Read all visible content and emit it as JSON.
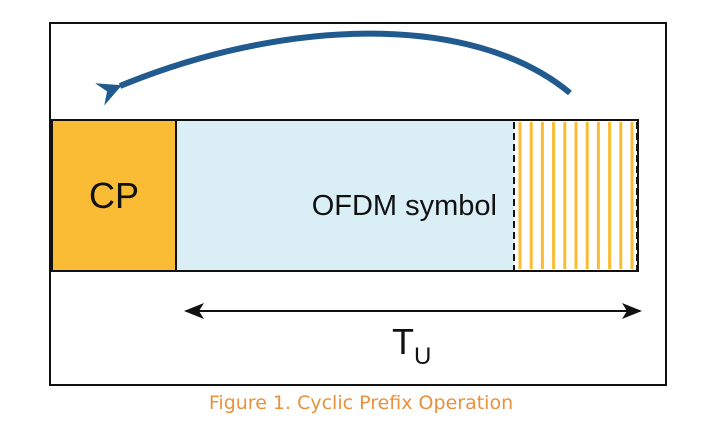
{
  "diagram": {
    "cp_label": "CP",
    "symbol_label": "OFDM symbol",
    "duration_label": "T",
    "duration_subscript": "U",
    "stripe_count": 11
  },
  "caption": {
    "text": "Figure 1. Cyclic Prefix Operation"
  },
  "colors": {
    "cp_fill": "#F9BC34",
    "symbol_fill": "#DAEFF5",
    "arrow": "#215A8E",
    "caption": "#E9913C",
    "stripe": "#F9BC34"
  }
}
